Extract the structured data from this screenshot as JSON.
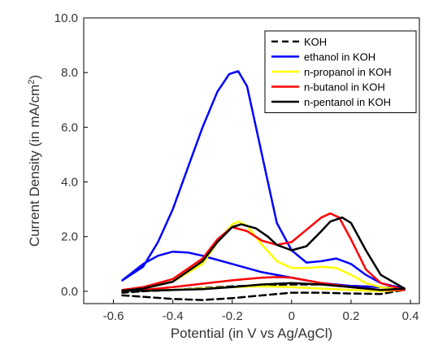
{
  "chart_data": {
    "type": "line",
    "xlabel": "Potential (in V vs Ag/AgCl)",
    "ylabel_main": "Current Density (in mA/cm",
    "ylabel_sup": "2",
    "ylabel_close": ")",
    "xlim": [
      -0.7,
      0.43
    ],
    "ylim": [
      -0.45,
      10.0
    ],
    "x_ticks": [
      -0.6,
      -0.4,
      -0.2,
      0,
      0.2,
      0.4
    ],
    "x_tick_labels": [
      "-0.6",
      "-0.4",
      "-0.2",
      "0",
      "0.2",
      "0.4"
    ],
    "y_ticks": [
      0,
      2,
      4,
      6,
      8,
      10
    ],
    "y_tick_labels": [
      "0.0",
      "2.0",
      "4.0",
      "6.0",
      "8.0",
      "10.0"
    ],
    "grid": false,
    "legend_position": "top-right",
    "series": [
      {
        "name": "KOH",
        "color": "#000000",
        "dash": "dashed",
        "x": [
          -0.57,
          -0.5,
          -0.4,
          -0.3,
          -0.2,
          -0.1,
          0.0,
          0.1,
          0.2,
          0.3,
          0.38,
          0.3,
          0.2,
          0.1,
          0.0,
          -0.1,
          -0.2,
          -0.3,
          -0.4,
          -0.5,
          -0.57
        ],
        "y": [
          -0.15,
          -0.2,
          -0.28,
          -0.32,
          -0.25,
          -0.15,
          -0.05,
          -0.05,
          -0.08,
          -0.1,
          0.05,
          0.15,
          0.2,
          0.25,
          0.25,
          0.22,
          0.18,
          0.12,
          0.05,
          0.0,
          -0.05
        ]
      },
      {
        "name": "ethanol in KOH",
        "color": "#0000ff",
        "dash": "solid",
        "x": [
          -0.57,
          -0.5,
          -0.45,
          -0.4,
          -0.35,
          -0.3,
          -0.25,
          -0.21,
          -0.18,
          -0.15,
          -0.12,
          -0.08,
          -0.05,
          0.0,
          0.05,
          0.1,
          0.15,
          0.2,
          0.25,
          0.3,
          0.38,
          0.3,
          0.2,
          0.1,
          0.0,
          -0.1,
          -0.2,
          -0.3,
          -0.35,
          -0.4,
          -0.45,
          -0.5,
          -0.57
        ],
        "y": [
          0.4,
          0.9,
          1.8,
          3.0,
          4.5,
          6.0,
          7.3,
          7.95,
          8.05,
          7.5,
          6.0,
          4.0,
          2.5,
          1.5,
          1.05,
          1.1,
          1.2,
          1.0,
          0.6,
          0.3,
          0.1,
          0.15,
          0.2,
          0.3,
          0.5,
          0.7,
          1.0,
          1.3,
          1.42,
          1.45,
          1.3,
          1.0,
          0.4
        ]
      },
      {
        "name": "n-propanol in KOH",
        "color": "#ffff00",
        "dash": "solid",
        "x": [
          -0.57,
          -0.5,
          -0.4,
          -0.3,
          -0.25,
          -0.2,
          -0.18,
          -0.15,
          -0.1,
          -0.05,
          0.0,
          0.05,
          0.1,
          0.15,
          0.2,
          0.25,
          0.3,
          0.38,
          0.3,
          0.2,
          0.1,
          0.0,
          -0.1,
          -0.2,
          -0.3,
          -0.4,
          -0.5,
          -0.57
        ],
        "y": [
          0.05,
          0.1,
          0.35,
          1.0,
          1.8,
          2.45,
          2.55,
          2.4,
          1.7,
          1.1,
          0.85,
          0.85,
          0.9,
          0.85,
          0.6,
          0.3,
          0.15,
          0.05,
          0.0,
          0.05,
          0.1,
          0.15,
          0.18,
          0.15,
          0.1,
          0.05,
          0.02,
          0.05
        ]
      },
      {
        "name": "n-butanol in KOH",
        "color": "#ff0000",
        "dash": "solid",
        "x": [
          -0.57,
          -0.5,
          -0.4,
          -0.3,
          -0.25,
          -0.2,
          -0.15,
          -0.1,
          -0.05,
          0.0,
          0.05,
          0.1,
          0.13,
          0.16,
          0.2,
          0.25,
          0.3,
          0.38,
          0.3,
          0.2,
          0.1,
          0.0,
          -0.05,
          -0.1,
          -0.2,
          -0.3,
          -0.4,
          -0.5,
          -0.57
        ],
        "y": [
          0.05,
          0.15,
          0.45,
          1.2,
          1.9,
          2.35,
          2.2,
          1.85,
          1.7,
          1.8,
          2.25,
          2.7,
          2.85,
          2.7,
          1.9,
          0.8,
          0.3,
          0.05,
          0.05,
          0.15,
          0.3,
          0.5,
          0.52,
          0.5,
          0.4,
          0.28,
          0.15,
          0.05,
          0.05
        ]
      },
      {
        "name": "n-pentanol in KOH",
        "color": "#000000",
        "dash": "solid",
        "x": [
          -0.57,
          -0.5,
          -0.4,
          -0.3,
          -0.25,
          -0.2,
          -0.17,
          -0.12,
          -0.08,
          -0.05,
          0.0,
          0.05,
          0.1,
          0.13,
          0.17,
          0.2,
          0.25,
          0.3,
          0.38,
          0.3,
          0.2,
          0.1,
          0.0,
          -0.1,
          -0.2,
          -0.3,
          -0.4,
          -0.5,
          -0.57
        ],
        "y": [
          0.02,
          0.1,
          0.35,
          1.1,
          1.8,
          2.35,
          2.45,
          2.3,
          2.0,
          1.7,
          1.5,
          1.65,
          2.2,
          2.55,
          2.7,
          2.5,
          1.5,
          0.6,
          0.1,
          0.05,
          0.15,
          0.25,
          0.3,
          0.25,
          0.15,
          0.08,
          0.05,
          0.02,
          0.02
        ]
      }
    ]
  }
}
